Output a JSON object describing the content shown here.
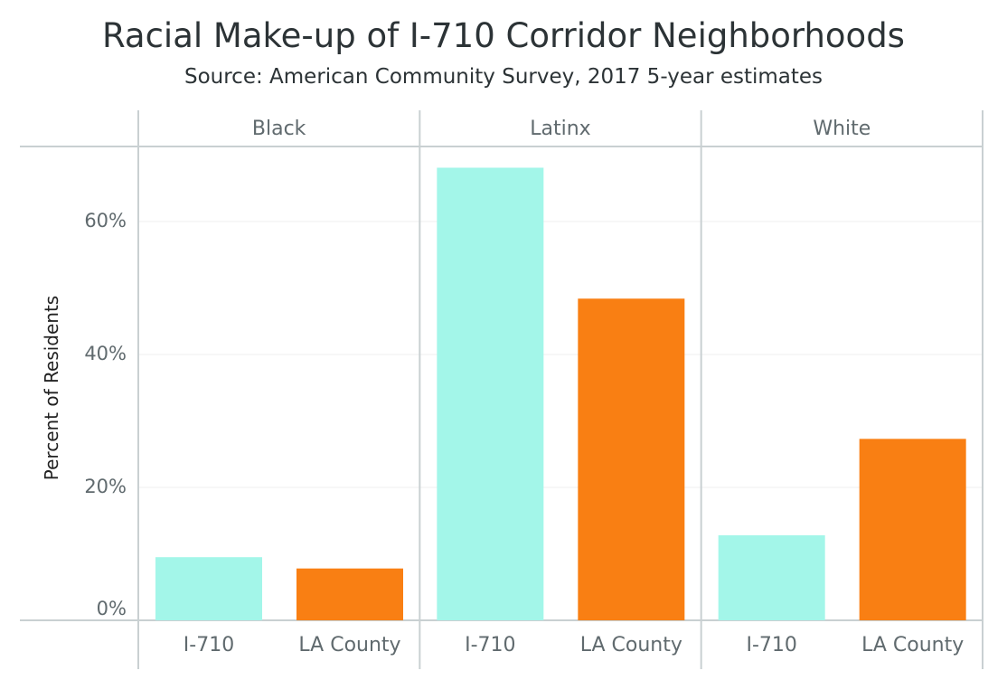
{
  "chart_data": {
    "type": "bar",
    "title": "Racial Make-up of I-710 Corridor Neighborhoods",
    "subtitle": "Source: American Community Survey, 2017 5-year estimates",
    "ylabel": "Percent of Residents",
    "ylim": [
      0,
      70
    ],
    "yticks": [
      0,
      20,
      40,
      60
    ],
    "ytick_labels": [
      "0%",
      "20%",
      "40%",
      "60%"
    ],
    "categories": [
      "I-710",
      "LA County"
    ],
    "facets": [
      {
        "name": "Black",
        "values": [
          9.5,
          7.8
        ]
      },
      {
        "name": "Latinx",
        "values": [
          68.1,
          48.4
        ]
      },
      {
        "name": "White",
        "values": [
          12.8,
          27.3
        ]
      }
    ],
    "colors": {
      "I-710": "#a3f6e9",
      "LA County": "#f97f13"
    },
    "grid": true,
    "legend": "none"
  }
}
